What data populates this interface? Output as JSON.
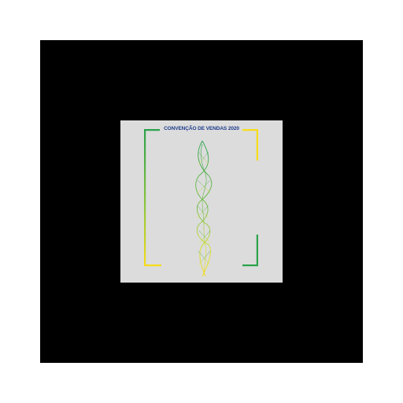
{
  "card": {
    "title": "CONVENÇÃO DE VENDAS 2020"
  },
  "colors": {
    "background": "#ffffff",
    "frame": "#000000",
    "card": "#dcdcdc",
    "title": "#1a3a8a",
    "green": "#2aa14a",
    "yellow": "#f5dd18"
  },
  "icons": {
    "logo": "dna-helix-logo"
  }
}
